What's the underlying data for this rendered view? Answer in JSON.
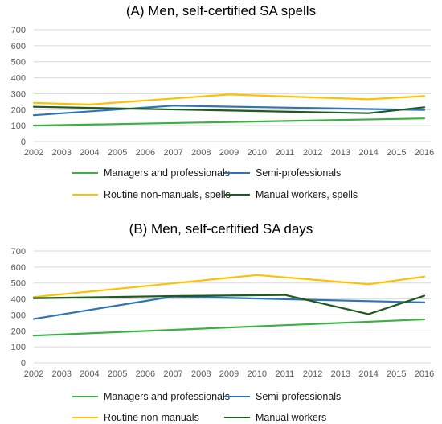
{
  "chart_data": [
    {
      "type": "line",
      "title": "(A) Men, self-certified SA spells",
      "xlabel": "",
      "ylabel": "",
      "x": [
        "2002",
        "2003",
        "2004",
        "2005",
        "2006",
        "2007",
        "2008",
        "2009",
        "2010",
        "2011",
        "2012",
        "2013",
        "2014",
        "2015",
        "2016"
      ],
      "ylim": [
        0,
        700
      ],
      "yticks": [
        "0",
        "100",
        "200",
        "300",
        "400",
        "500",
        "600",
        "700"
      ],
      "grid": true,
      "legend_position": "bottom",
      "series": [
        {
          "name": "Managers and professionals",
          "color": "#3bb143",
          "values": [
            100,
            null,
            null,
            null,
            null,
            null,
            null,
            null,
            null,
            null,
            null,
            null,
            null,
            null,
            145
          ]
        },
        {
          "name": "Semi-professionals",
          "color": "#2e75b6",
          "values": [
            165,
            null,
            null,
            null,
            null,
            225,
            null,
            null,
            null,
            null,
            null,
            null,
            null,
            null,
            198
          ]
        },
        {
          "name": "Routine non-manuals, spells",
          "color": "#ffc000",
          "values": [
            242,
            null,
            232,
            null,
            null,
            null,
            null,
            295,
            null,
            null,
            null,
            null,
            265,
            null,
            285
          ]
        },
        {
          "name": "Manual workers, spells",
          "color": "#1e5b1e",
          "values": [
            218,
            null,
            null,
            null,
            null,
            null,
            null,
            null,
            null,
            null,
            null,
            null,
            178,
            null,
            215
          ]
        }
      ]
    },
    {
      "type": "line",
      "title": "(B) Men, self-certified SA days",
      "xlabel": "",
      "ylabel": "",
      "x": [
        "2002",
        "2003",
        "2004",
        "2005",
        "2006",
        "2007",
        "2008",
        "2009",
        "2010",
        "2011",
        "2012",
        "2013",
        "2014",
        "2015",
        "2016"
      ],
      "ylim": [
        0,
        700
      ],
      "yticks": [
        "0",
        "100",
        "200",
        "300",
        "400",
        "500",
        "600",
        "700"
      ],
      "grid": true,
      "legend_position": "bottom",
      "series": [
        {
          "name": "Managers and professionals",
          "color": "#3bb143",
          "values": [
            170,
            null,
            null,
            null,
            null,
            null,
            null,
            null,
            null,
            null,
            null,
            null,
            null,
            null,
            272
          ]
        },
        {
          "name": "Semi-professionals",
          "color": "#2e75b6",
          "values": [
            275,
            null,
            null,
            null,
            null,
            415,
            null,
            null,
            null,
            null,
            null,
            null,
            null,
            null,
            378
          ]
        },
        {
          "name": "Routine non-manuals",
          "color": "#ffc000",
          "values": [
            412,
            null,
            null,
            null,
            null,
            null,
            null,
            null,
            550,
            null,
            null,
            null,
            492,
            null,
            540
          ]
        },
        {
          "name": "Manual workers",
          "color": "#1e5b1e",
          "values": [
            405,
            null,
            null,
            null,
            null,
            418,
            null,
            null,
            null,
            425,
            null,
            null,
            305,
            null,
            420
          ]
        }
      ]
    }
  ]
}
